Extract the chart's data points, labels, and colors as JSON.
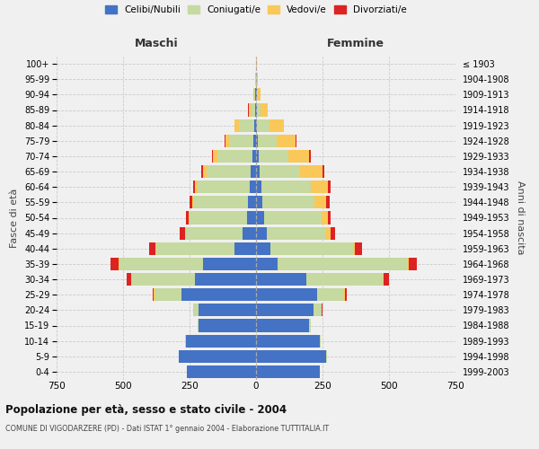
{
  "age_groups": [
    "0-4",
    "5-9",
    "10-14",
    "15-19",
    "20-24",
    "25-29",
    "30-34",
    "35-39",
    "40-44",
    "45-49",
    "50-54",
    "55-59",
    "60-64",
    "65-69",
    "70-74",
    "75-79",
    "80-84",
    "85-89",
    "90-94",
    "95-99",
    "100+"
  ],
  "birth_years": [
    "1999-2003",
    "1994-1998",
    "1989-1993",
    "1984-1988",
    "1979-1983",
    "1974-1978",
    "1969-1973",
    "1964-1968",
    "1959-1963",
    "1954-1958",
    "1949-1953",
    "1944-1948",
    "1939-1943",
    "1934-1938",
    "1929-1933",
    "1924-1928",
    "1919-1923",
    "1914-1918",
    "1909-1913",
    "1904-1908",
    "≤ 1903"
  ],
  "males": {
    "celibe": [
      260,
      290,
      265,
      215,
      215,
      280,
      230,
      200,
      80,
      50,
      35,
      30,
      25,
      20,
      15,
      10,
      8,
      5,
      2,
      1,
      0
    ],
    "coniugato": [
      1,
      2,
      3,
      5,
      20,
      100,
      235,
      315,
      295,
      215,
      215,
      205,
      195,
      165,
      130,
      90,
      55,
      15,
      5,
      2,
      1
    ],
    "vedovo": [
      0,
      0,
      0,
      0,
      1,
      5,
      3,
      3,
      3,
      3,
      5,
      5,
      10,
      15,
      18,
      15,
      18,
      8,
      3,
      1,
      0
    ],
    "divorziato": [
      0,
      0,
      0,
      0,
      2,
      5,
      18,
      30,
      25,
      18,
      10,
      10,
      8,
      5,
      3,
      3,
      1,
      1,
      0,
      0,
      0
    ]
  },
  "females": {
    "nubile": [
      240,
      265,
      240,
      200,
      215,
      230,
      190,
      80,
      55,
      40,
      30,
      25,
      20,
      15,
      10,
      8,
      5,
      3,
      2,
      1,
      0
    ],
    "coniugata": [
      1,
      2,
      3,
      5,
      30,
      100,
      285,
      490,
      310,
      225,
      215,
      195,
      185,
      150,
      110,
      70,
      45,
      15,
      5,
      2,
      1
    ],
    "vedova": [
      0,
      0,
      0,
      0,
      2,
      5,
      5,
      5,
      8,
      15,
      25,
      45,
      65,
      85,
      80,
      70,
      55,
      25,
      10,
      3,
      1
    ],
    "divorziata": [
      0,
      0,
      0,
      0,
      2,
      5,
      20,
      30,
      25,
      18,
      12,
      12,
      10,
      8,
      5,
      3,
      1,
      1,
      0,
      0,
      0
    ]
  },
  "colors": {
    "celibe_nubile": "#4472C4",
    "coniugato_a": "#C5D9A0",
    "vedovo_a": "#FAC858",
    "divorziato_a": "#DD2222"
  },
  "xlim": 750,
  "title": "Popolazione per età, sesso e stato civile - 2004",
  "subtitle": "COMUNE DI VIGODARZERE (PD) - Dati ISTAT 1° gennaio 2004 - Elaborazione TUTTITALIA.IT",
  "ylabel_left": "Fasce di età",
  "ylabel_right": "Anni di nascita",
  "xlabel_left": "Maschi",
  "xlabel_right": "Femmine",
  "bg_color": "#f0f0f0",
  "grid_color": "#cccccc"
}
